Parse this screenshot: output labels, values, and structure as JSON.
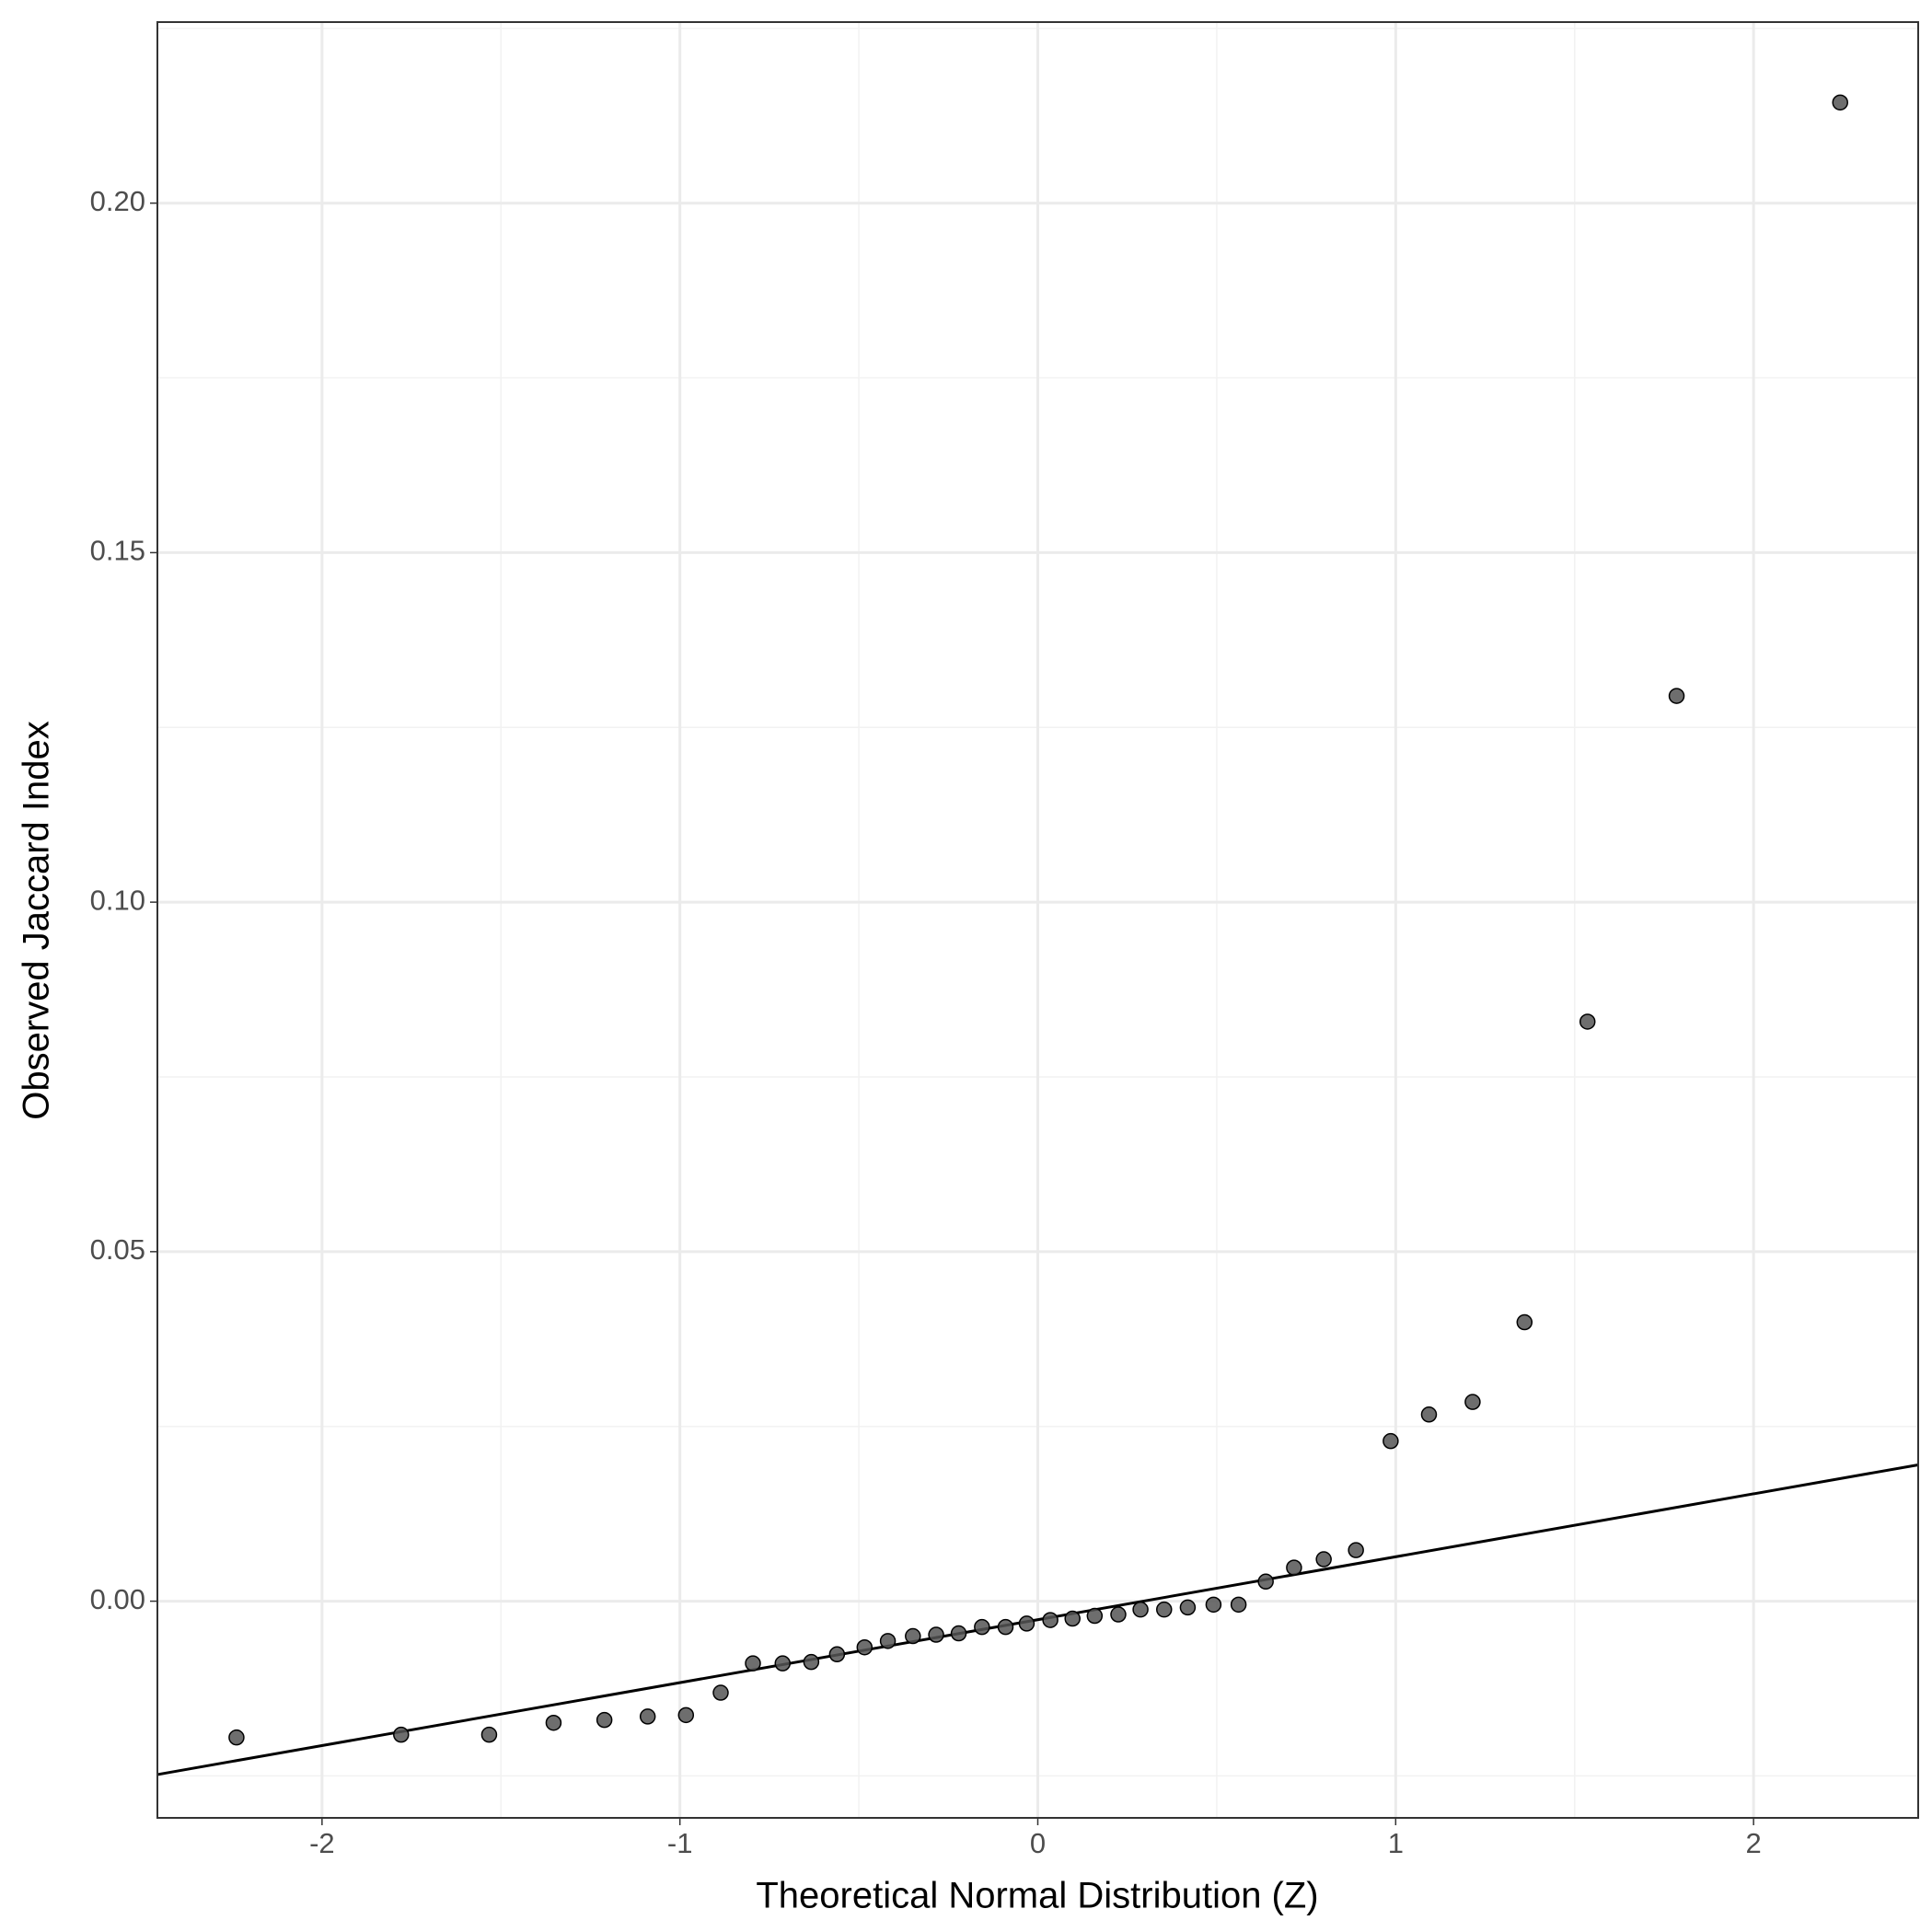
{
  "chart_data": {
    "type": "scatter",
    "x_label": "Theoretical Normal Distribution (Z)",
    "y_label": "Observed Jaccard Index",
    "x": [
      -2.239,
      -1.779,
      -1.533,
      -1.353,
      -1.211,
      -1.09,
      -0.983,
      -0.886,
      -0.796,
      -0.713,
      -0.633,
      -0.561,
      -0.484,
      -0.419,
      -0.349,
      -0.284,
      -0.221,
      -0.156,
      -0.09,
      -0.031,
      0.035,
      0.097,
      0.159,
      0.225,
      0.287,
      0.353,
      0.419,
      0.491,
      0.561,
      0.637,
      0.716,
      0.799,
      0.889,
      0.986,
      1.093,
      1.215,
      1.36,
      1.536,
      1.785,
      2.242
    ],
    "values": [
      -0.0195,
      -0.0191,
      -0.0191,
      -0.0174,
      -0.017,
      -0.0165,
      -0.0163,
      -0.0131,
      -0.0089,
      -0.0089,
      -0.0087,
      -0.0076,
      -0.0066,
      -0.0057,
      -0.005,
      -0.0048,
      -0.0046,
      -0.0037,
      -0.0037,
      -0.0032,
      -0.0027,
      -0.0025,
      -0.0021,
      -0.0019,
      -0.0012,
      -0.0012,
      -0.0009,
      -0.0005,
      -0.0005,
      0.0028,
      0.0048,
      0.006,
      0.0073,
      0.0229,
      0.0267,
      0.0285,
      0.0399,
      0.0829,
      0.1295,
      0.2144
    ],
    "color": "#555555",
    "reference_line": {
      "x": [
        -2.46,
        2.46
      ],
      "values": [
        -0.0248,
        0.0195
      ],
      "color": "#000000"
    },
    "xlim": [
      -2.46,
      2.46
    ],
    "ylim": [
      -0.031,
      0.2259
    ],
    "xticks": [
      -2,
      -1,
      0,
      1,
      2
    ],
    "yticks": [
      {
        "value": 0,
        "label": "0.00"
      },
      {
        "value": 0.05,
        "label": "0.05"
      },
      {
        "value": 0.1,
        "label": "0.10"
      },
      {
        "value": 0.15,
        "label": "0.15"
      },
      {
        "value": 0.2,
        "label": "0.20"
      }
    ],
    "xminor": [
      -1.5,
      -0.5,
      0.5,
      1.5
    ],
    "yminor": [
      -0.025,
      0.025,
      0.075,
      0.125,
      0.175,
      0.225
    ],
    "grid": true
  }
}
